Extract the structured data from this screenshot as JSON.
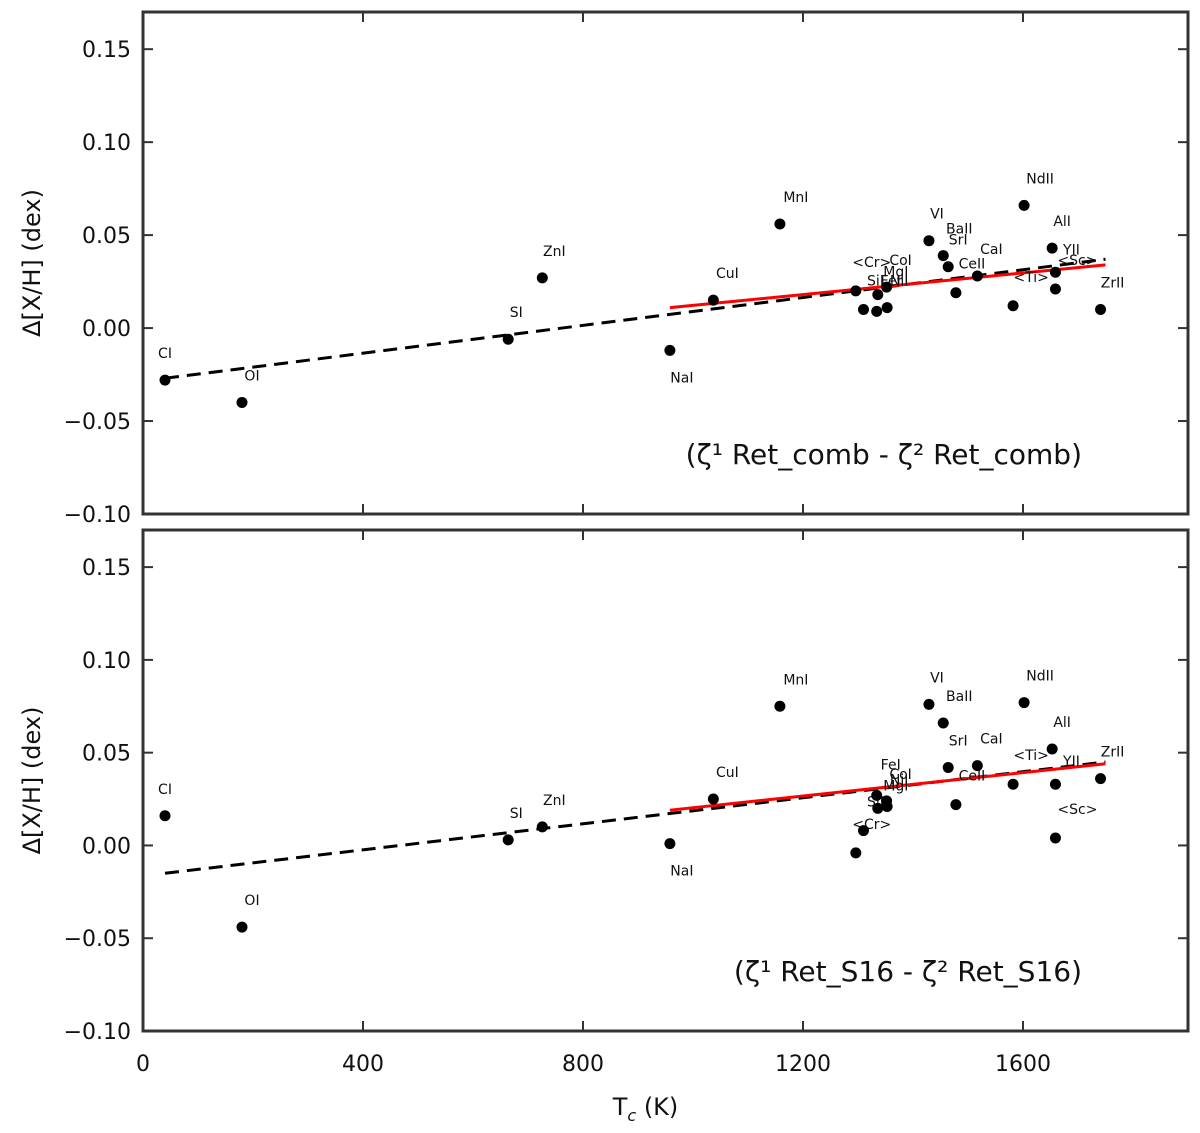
{
  "chart_data": [
    {
      "type": "scatter",
      "annotation": "(ζ¹ Ret_comb - ζ² Ret_comb)",
      "ylabel": "Δ[X/H] (dex)",
      "xlim": [
        0,
        1900
      ],
      "ylim": [
        -0.1,
        0.17
      ],
      "yticks": [
        0.15,
        0.1,
        0.05,
        0.0,
        -0.05,
        -0.1
      ],
      "ytick_labels": [
        "0.15",
        "0.10",
        "0.05",
        "0.00",
        "−0.05",
        "−0.10"
      ],
      "points": [
        {
          "label": "CI",
          "x": 40,
          "y": -0.028
        },
        {
          "label": "OI",
          "x": 180,
          "y": -0.04
        },
        {
          "label": "SI",
          "x": 664,
          "y": -0.006
        },
        {
          "label": "ZnI",
          "x": 726,
          "y": 0.027
        },
        {
          "label": "NaI",
          "x": 958,
          "y": -0.012
        },
        {
          "label": "CuI",
          "x": 1037,
          "y": 0.015
        },
        {
          "label": "MnI",
          "x": 1158,
          "y": 0.056
        },
        {
          "label": "<Cr>",
          "x": 1296,
          "y": 0.02
        },
        {
          "label": "SiI",
          "x": 1310,
          "y": 0.01
        },
        {
          "label": "FeI",
          "x": 1334,
          "y": 0.009
        },
        {
          "label": "MgI",
          "x": 1336,
          "y": 0.018
        },
        {
          "label": "CoI",
          "x": 1352,
          "y": 0.022
        },
        {
          "label": "NiI",
          "x": 1353,
          "y": 0.011
        },
        {
          "label": "VI",
          "x": 1429,
          "y": 0.047
        },
        {
          "label": "BaII",
          "x": 1455,
          "y": 0.039
        },
        {
          "label": "SrI",
          "x": 1464,
          "y": 0.033
        },
        {
          "label": "CeII",
          "x": 1478,
          "y": 0.019
        },
        {
          "label": "CaI",
          "x": 1517,
          "y": 0.028
        },
        {
          "label": "<Ti>",
          "x": 1582,
          "y": 0.012
        },
        {
          "label": "NdII",
          "x": 1602,
          "y": 0.066
        },
        {
          "label": "AlI",
          "x": 1653,
          "y": 0.043
        },
        {
          "label": "YII",
          "x": 1659,
          "y": 0.03
        },
        {
          "label": "<Sc>",
          "x": 1659,
          "y": 0.021
        },
        {
          "label": "ZrII",
          "x": 1741,
          "y": 0.01
        }
      ],
      "fit_all": {
        "x": [
          40,
          1750
        ],
        "y": [
          -0.027,
          0.037
        ]
      },
      "fit_refractory": {
        "x": [
          958,
          1750
        ],
        "y": [
          0.011,
          0.034
        ]
      }
    },
    {
      "type": "scatter",
      "annotation": "(ζ¹ Ret_S16 - ζ² Ret_S16)",
      "ylabel": "Δ[X/H] (dex)",
      "xlabel": "T_c (K)",
      "xlim": [
        0,
        1900
      ],
      "ylim": [
        -0.1,
        0.17
      ],
      "xticks": [
        0,
        400,
        800,
        1200,
        1600
      ],
      "xtick_labels": [
        "0",
        "400",
        "800",
        "1200",
        "1600"
      ],
      "yticks": [
        0.15,
        0.1,
        0.05,
        0.0,
        -0.05,
        -0.1
      ],
      "ytick_labels": [
        "0.15",
        "0.10",
        "0.05",
        "0.00",
        "−0.05",
        "−0.10"
      ],
      "points": [
        {
          "label": "CI",
          "x": 40,
          "y": 0.016
        },
        {
          "label": "OI",
          "x": 180,
          "y": -0.044
        },
        {
          "label": "SI",
          "x": 664,
          "y": 0.003
        },
        {
          "label": "ZnI",
          "x": 726,
          "y": 0.01
        },
        {
          "label": "NaI",
          "x": 958,
          "y": 0.001
        },
        {
          "label": "CuI",
          "x": 1037,
          "y": 0.025
        },
        {
          "label": "MnI",
          "x": 1158,
          "y": 0.075
        },
        {
          "label": "<Cr>",
          "x": 1296,
          "y": -0.004
        },
        {
          "label": "SiI",
          "x": 1310,
          "y": 0.008
        },
        {
          "label": "FeI",
          "x": 1334,
          "y": 0.027
        },
        {
          "label": "MgI",
          "x": 1336,
          "y": 0.02
        },
        {
          "label": "CoI",
          "x": 1352,
          "y": 0.024
        },
        {
          "label": "NiI",
          "x": 1353,
          "y": 0.021
        },
        {
          "label": "VI",
          "x": 1429,
          "y": 0.076
        },
        {
          "label": "BaII",
          "x": 1455,
          "y": 0.066
        },
        {
          "label": "SrI",
          "x": 1464,
          "y": 0.042
        },
        {
          "label": "CeII",
          "x": 1478,
          "y": 0.022
        },
        {
          "label": "CaI",
          "x": 1517,
          "y": 0.043
        },
        {
          "label": "<Ti>",
          "x": 1582,
          "y": 0.033
        },
        {
          "label": "NdII",
          "x": 1602,
          "y": 0.077
        },
        {
          "label": "AlI",
          "x": 1653,
          "y": 0.052
        },
        {
          "label": "YII",
          "x": 1659,
          "y": 0.033
        },
        {
          "label": "<Sc>",
          "x": 1659,
          "y": 0.004
        },
        {
          "label": "ZrII",
          "x": 1741,
          "y": 0.036
        }
      ],
      "fit_all": {
        "x": [
          40,
          1750
        ],
        "y": [
          -0.015,
          0.045
        ]
      },
      "fit_refractory": {
        "x": [
          958,
          1750
        ],
        "y": [
          0.019,
          0.044
        ]
      }
    }
  ],
  "colors": {
    "fit_refractory": "#ff0000",
    "fit_all": "#000000",
    "points": "#000000",
    "frame": "#333333"
  }
}
